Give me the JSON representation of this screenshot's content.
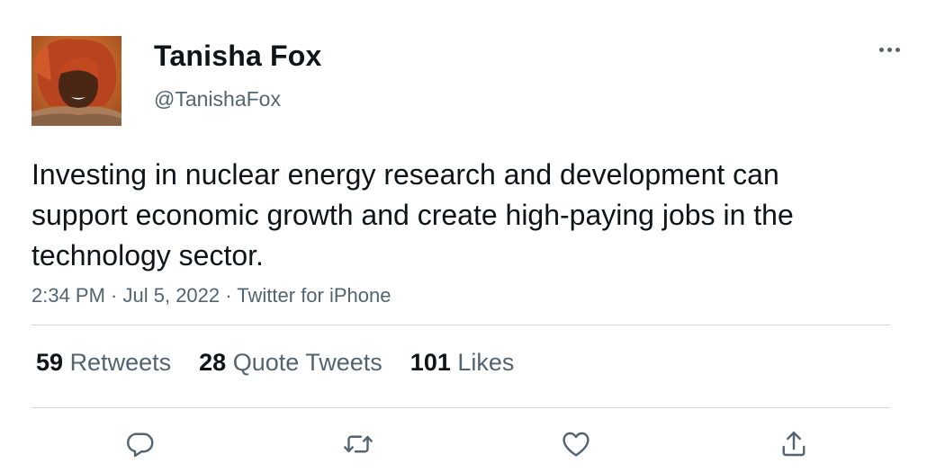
{
  "author": {
    "display_name": "Tanisha Fox",
    "handle": "@TanishaFox"
  },
  "tweet": {
    "text": "Investing in nuclear energy research and development can support economic growth and create high-paying jobs in the technology sector.",
    "time": "2:34 PM",
    "date": "Jul 5, 2022",
    "source": "Twitter for iPhone",
    "separator": " · "
  },
  "stats": {
    "retweets": {
      "count": "59",
      "label": "Retweets"
    },
    "quote_tweets": {
      "count": "28",
      "label": "Quote Tweets"
    },
    "likes": {
      "count": "101",
      "label": "Likes"
    }
  },
  "icons": {
    "more": "more-horizontal-icon",
    "reply": "reply-icon",
    "retweet": "retweet-icon",
    "like": "heart-icon",
    "share": "share-icon"
  },
  "colors": {
    "text_primary": "#0f1419",
    "text_secondary": "#536471",
    "divider": "#cfd9de",
    "background": "#ffffff"
  }
}
